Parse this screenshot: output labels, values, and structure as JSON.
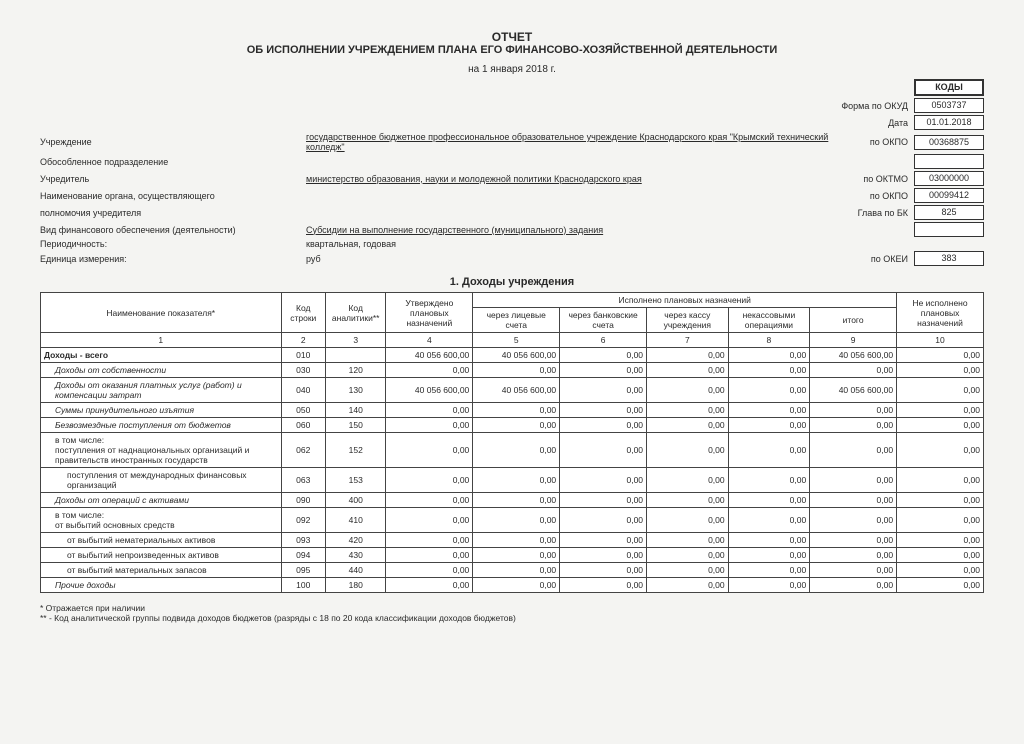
{
  "header": {
    "title": "ОТЧЕТ",
    "subtitle": "ОБ ИСПОЛНЕНИИ УЧРЕЖДЕНИЕМ ПЛАНА ЕГО ФИНАНСОВО-ХОЗЯЙСТВЕННОЙ ДЕЯТЕЛЬНОСТИ",
    "date": "на 1 января 2018 г."
  },
  "codes": {
    "head": "КОДЫ",
    "okud_label": "Форма по ОКУД",
    "okud": "0503737",
    "date_label": "Дата",
    "date": "01.01.2018",
    "okpo_label": "по ОКПО",
    "okpo": "00368875",
    "oktmo_label": "по ОКТМО",
    "oktmo": "03000000",
    "okpo2_label": "по ОКПО",
    "okpo2": "00099412",
    "glava_label": "Глава по БК",
    "glava": "825",
    "okei_label": "по ОКЕИ",
    "okei": "383"
  },
  "meta": {
    "inst_label": "Учреждение",
    "inst_value": "государственное бюджетное профессиональное образовательное учреждение Краснодарского края \"Крымский технический колледж\"",
    "subdiv_label": "Обособленное подразделение",
    "founder_label": "Учредитель",
    "founder_value": "министерство образования, науки и молодежной политики Краснодарского края",
    "organ_label": "Наименование органа, осуществляющего",
    "organ_label2": "полномочия учредителя",
    "fintype_label": "Вид финансового обеспечения (деятельности)",
    "fintype_value": "Субсидии на выполнение государственного (муниципального) задания",
    "period_label": "Периодичность:",
    "period_value": "квартальная, годовая",
    "unit_label": "Единица измерения:",
    "unit_value": "руб"
  },
  "section1": {
    "title": "1. Доходы учреждения",
    "columns": {
      "c1": "Наименование показателя*",
      "c2": "Код строки",
      "c3": "Код аналитики**",
      "c4": "Утверждено плановых назначений",
      "group": "Исполнено плановых назначений",
      "c5": "через лицевые счета",
      "c6": "через банковские счета",
      "c7": "через кассу учреждения",
      "c8": "некассовыми операциями",
      "c9": "итого",
      "c10": "Не исполнено плановых назначений"
    },
    "numrow": [
      "1",
      "2",
      "3",
      "4",
      "5",
      "6",
      "7",
      "8",
      "9",
      "10"
    ],
    "rows": [
      {
        "name": "Доходы - всего",
        "bold": true,
        "code": "010",
        "anal": "",
        "v": [
          "40 056 600,00",
          "40 056 600,00",
          "0,00",
          "0,00",
          "0,00",
          "40 056 600,00",
          "0,00"
        ]
      },
      {
        "name": "Доходы от собственности",
        "italic": true,
        "indent": 1,
        "code": "030",
        "anal": "120",
        "v": [
          "0,00",
          "0,00",
          "0,00",
          "0,00",
          "0,00",
          "0,00",
          "0,00"
        ]
      },
      {
        "name": "Доходы от оказания платных услуг (работ) и компенсации затрат",
        "italic": true,
        "indent": 1,
        "code": "040",
        "anal": "130",
        "v": [
          "40 056 600,00",
          "40 056 600,00",
          "0,00",
          "0,00",
          "0,00",
          "40 056 600,00",
          "0,00"
        ]
      },
      {
        "name": "Суммы принудительного изъятия",
        "italic": true,
        "indent": 1,
        "code": "050",
        "anal": "140",
        "v": [
          "0,00",
          "0,00",
          "0,00",
          "0,00",
          "0,00",
          "0,00",
          "0,00"
        ]
      },
      {
        "name": "Безвозмездные поступления от бюджетов",
        "italic": true,
        "indent": 1,
        "code": "060",
        "anal": "150",
        "v": [
          "0,00",
          "0,00",
          "0,00",
          "0,00",
          "0,00",
          "0,00",
          "0,00"
        ]
      },
      {
        "name": "в том числе:\nпоступления от наднациональных организаций и правительств иностранных государств",
        "indent": 1,
        "code": "062",
        "anal": "152",
        "v": [
          "0,00",
          "0,00",
          "0,00",
          "0,00",
          "0,00",
          "0,00",
          "0,00"
        ]
      },
      {
        "name": "поступления от международных финансовых организаций",
        "indent": 2,
        "code": "063",
        "anal": "153",
        "v": [
          "0,00",
          "0,00",
          "0,00",
          "0,00",
          "0,00",
          "0,00",
          "0,00"
        ]
      },
      {
        "name": "Доходы от операций с активами",
        "italic": true,
        "indent": 1,
        "code": "090",
        "anal": "400",
        "v": [
          "0,00",
          "0,00",
          "0,00",
          "0,00",
          "0,00",
          "0,00",
          "0,00"
        ]
      },
      {
        "name": "в том числе:\nот выбытий основных средств",
        "indent": 1,
        "code": "092",
        "anal": "410",
        "v": [
          "0,00",
          "0,00",
          "0,00",
          "0,00",
          "0,00",
          "0,00",
          "0,00"
        ]
      },
      {
        "name": "от выбытий нематериальных активов",
        "indent": 2,
        "code": "093",
        "anal": "420",
        "v": [
          "0,00",
          "0,00",
          "0,00",
          "0,00",
          "0,00",
          "0,00",
          "0,00"
        ]
      },
      {
        "name": "от выбытий непроизведенных активов",
        "indent": 2,
        "code": "094",
        "anal": "430",
        "v": [
          "0,00",
          "0,00",
          "0,00",
          "0,00",
          "0,00",
          "0,00",
          "0,00"
        ]
      },
      {
        "name": "от выбытий материальных запасов",
        "indent": 2,
        "code": "095",
        "anal": "440",
        "v": [
          "0,00",
          "0,00",
          "0,00",
          "0,00",
          "0,00",
          "0,00",
          "0,00"
        ]
      },
      {
        "name": "Прочие доходы",
        "italic": true,
        "indent": 1,
        "code": "100",
        "anal": "180",
        "v": [
          "0,00",
          "0,00",
          "0,00",
          "0,00",
          "0,00",
          "0,00",
          "0,00"
        ]
      }
    ]
  },
  "footnotes": {
    "f1": "* Отражается при наличии",
    "f2": "** - Код аналитической группы подвида доходов бюджетов (разряды с 18 по 20 кода  классификации доходов бюджетов)"
  }
}
